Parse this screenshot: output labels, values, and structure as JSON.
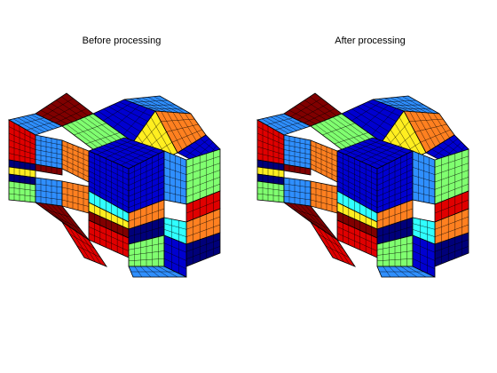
{
  "figure": {
    "panels": [
      {
        "title": "Before processing"
      },
      {
        "title": "After processing"
      }
    ]
  },
  "colors": {
    "red": "#e00000",
    "darkred": "#800000",
    "blue": "#0000d0",
    "navy": "#00007a",
    "lightblue": "#2f8fff",
    "cyan": "#30ffff",
    "orange": "#ff8020",
    "yellow": "#ffee20",
    "green": "#80ff70",
    "background": "#ffffff"
  }
}
